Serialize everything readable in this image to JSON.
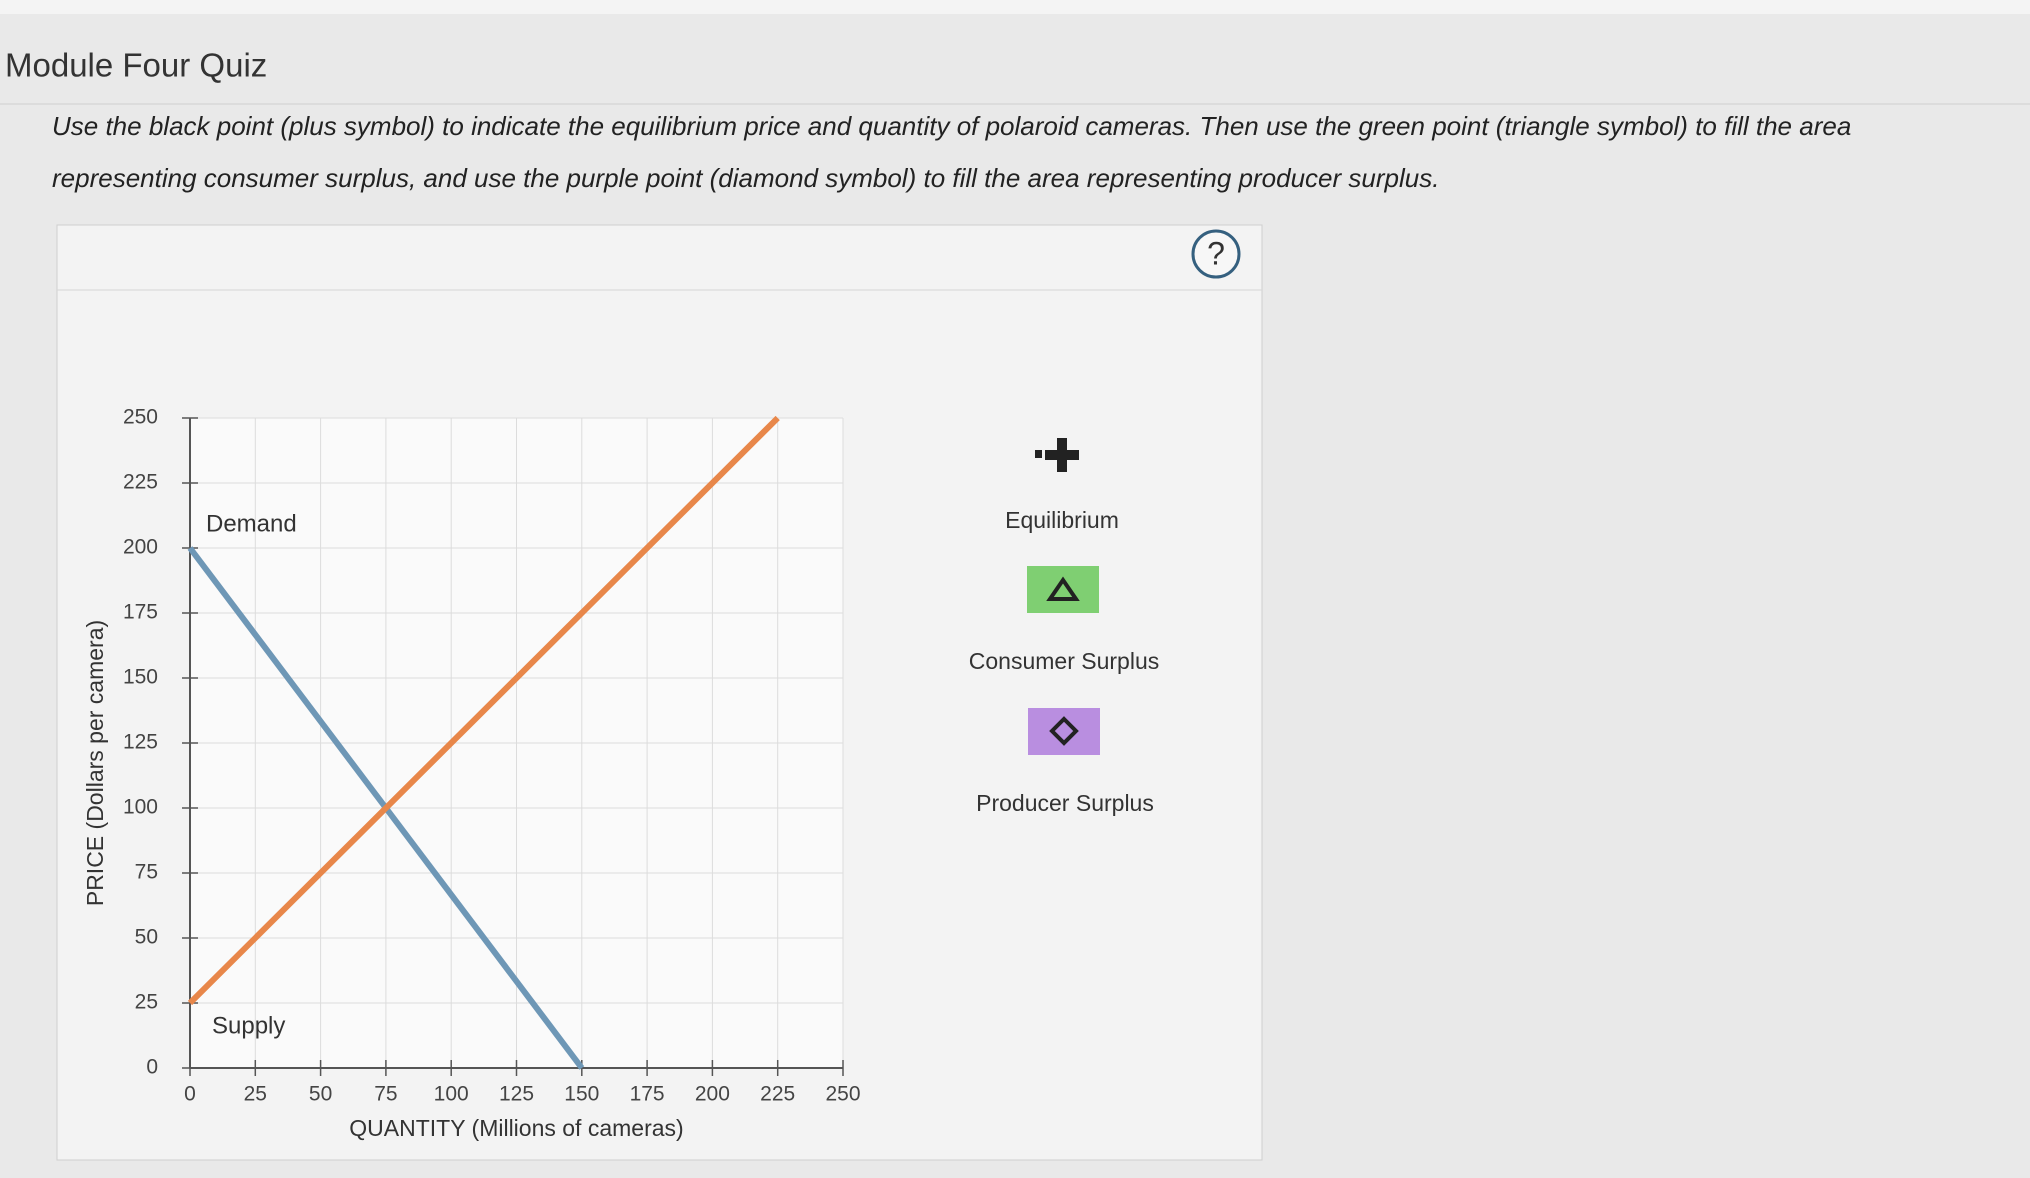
{
  "header": {
    "title": "Module Four Quiz"
  },
  "instructions": "Use the black point (plus symbol) to indicate the equilibrium price and quantity of polaroid cameras. Then use the green point (triangle symbol) to fill the area representing consumer surplus, and use the purple point (diamond symbol) to fill the area representing producer surplus.",
  "help": "?",
  "tools": [
    "Equilibrium",
    "Consumer Surplus",
    "Producer Surplus"
  ],
  "chart_data": {
    "type": "line",
    "x_label": "QUANTITY (Millions of cameras)",
    "y_label": "PRICE (Dollars per camera)",
    "x": [
      0,
      75,
      150,
      225
    ],
    "series": [
      {
        "name": "Demand",
        "color": "#6e97b6",
        "values": [
          200,
          100,
          0,
          null
        ]
      },
      {
        "name": "Supply",
        "color": "#e8874a",
        "values": [
          25,
          100,
          175,
          250
        ]
      }
    ],
    "xlim": [
      0,
      250
    ],
    "ylim": [
      0,
      250
    ],
    "xticks": [
      0,
      25,
      50,
      75,
      100,
      125,
      150,
      175,
      200,
      225,
      250
    ],
    "yticks": [
      0,
      25,
      50,
      75,
      100,
      125,
      150,
      175,
      200,
      225,
      250
    ],
    "grid": true
  }
}
